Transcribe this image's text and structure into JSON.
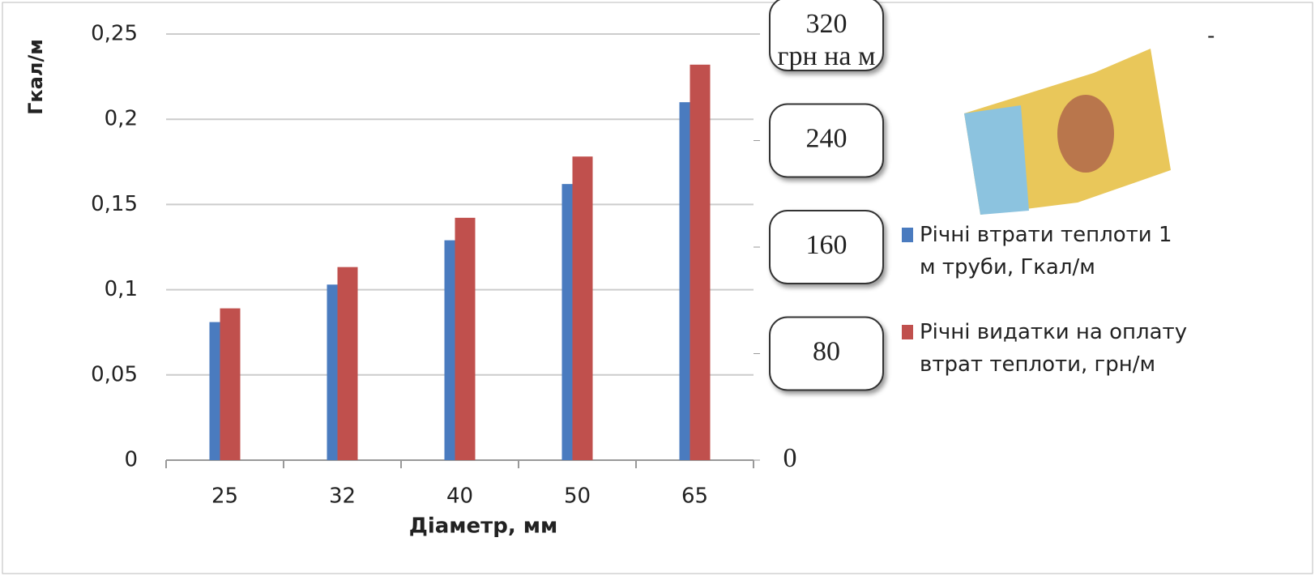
{
  "chart_data": {
    "type": "bar",
    "x_label": "Діаметр, мм",
    "y_label": "Гкал/м",
    "y2_label": "грн на м",
    "categories": [
      "25",
      "32",
      "40",
      "50",
      "65"
    ],
    "series": [
      {
        "name": "Річні втрати теплоти 1 м труби, Гкал/м",
        "color": "#4a7bbf",
        "values": [
          0.081,
          0.103,
          0.129,
          0.162,
          0.21
        ]
      },
      {
        "name": "Річні видатки на оплату втрат теплоти, грн/м",
        "color": "#c0504d",
        "axis": "y2",
        "values": [
          114,
          145,
          182,
          228,
          297
        ]
      }
    ],
    "ylim": [
      0,
      0.25
    ],
    "yticks": [
      0,
      {
        "value": 0.05,
        "label": "0,05"
      },
      {
        "value": 0.1,
        "label": "0,1"
      },
      {
        "value": 0.15,
        "label": "0,15"
      },
      {
        "value": 0.2,
        "label": "0,2"
      },
      {
        "value": 0.25,
        "label": "0,25"
      }
    ],
    "y2lim": [
      0,
      320
    ],
    "y2ticks": [
      0,
      80,
      160,
      240,
      320
    ],
    "grid": true,
    "legend": "right"
  }
}
